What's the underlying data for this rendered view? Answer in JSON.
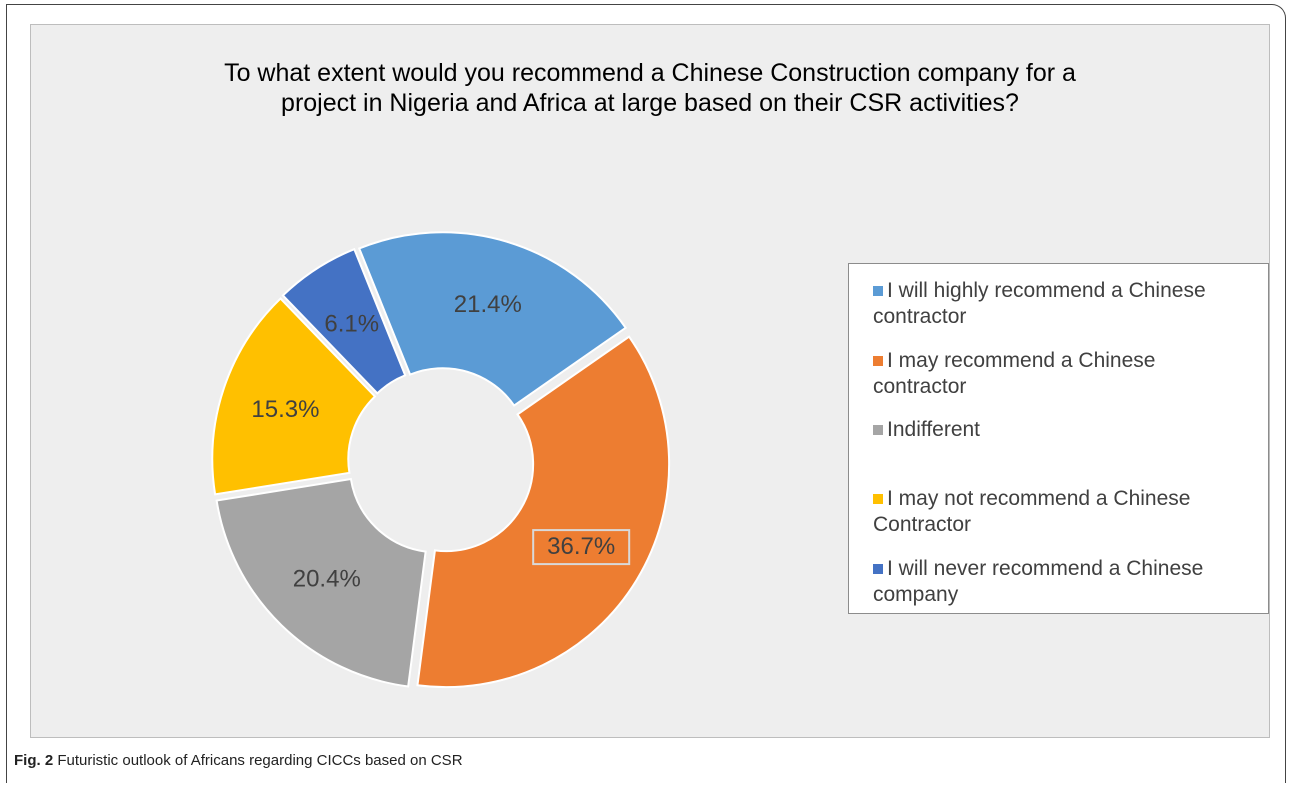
{
  "chart_data": {
    "type": "pie",
    "style": "donut",
    "title_lines": [
      "To what extent would you recommend a Chinese Construction company for a",
      "project in Nigeria and Africa at large based on their CSR activities?"
    ],
    "legend_position": "right",
    "slices": [
      {
        "legend_lines": [
          "I will highly recommend a Chinese",
          "contractor"
        ],
        "value": 21.4,
        "label": "21.4%",
        "color": "#5b9bd5"
      },
      {
        "legend_lines": [
          "I may recommend a Chinese",
          "contractor"
        ],
        "value": 36.7,
        "label": "36.7%",
        "color": "#ed7d31"
      },
      {
        "legend_lines": [
          "Indifferent"
        ],
        "value": 20.4,
        "label": "20.4%",
        "color": "#a5a5a5"
      },
      {
        "legend_lines": [
          "I may not recommend a Chinese",
          "Contractor"
        ],
        "value": 15.3,
        "label": "15.3%",
        "color": "#ffc000"
      },
      {
        "legend_lines": [
          "I will never recommend a Chinese",
          "company"
        ],
        "value": 6.1,
        "label": "6.1%",
        "color": "#4472c4"
      }
    ]
  },
  "caption": {
    "label": "Fig. 2",
    "text": " Futuristic outlook of Africans regarding CICCs based on CSR"
  }
}
